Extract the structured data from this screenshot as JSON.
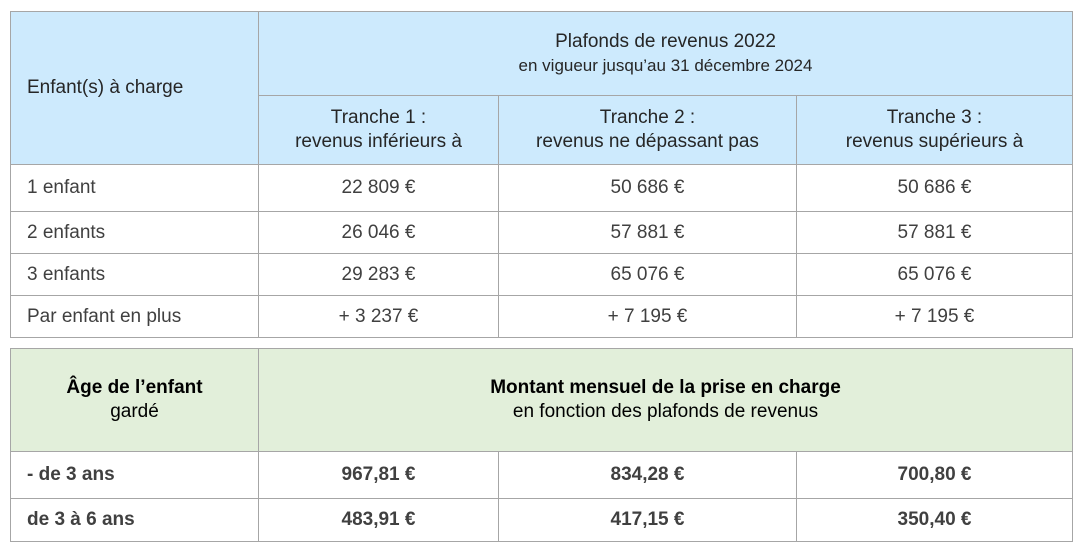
{
  "income_table": {
    "col_header": "Enfant(s) à charge",
    "title": "Plafonds de revenus 2022",
    "subtitle": "en vigueur jusqu’au 31 décembre 2024",
    "tranches": [
      {
        "line1": "Tranche 1 :",
        "line2": "revenus inférieurs à"
      },
      {
        "line1": "Tranche 2 :",
        "line2": "revenus ne dépassant pas"
      },
      {
        "line1": "Tranche 3 :",
        "line2": "revenus supérieurs à"
      }
    ],
    "rows": [
      {
        "label": "1 enfant",
        "values": [
          "22 809 €",
          "50 686 €",
          "50 686 €"
        ]
      },
      {
        "label": "2 enfants",
        "values": [
          "26 046 €",
          "57 881 €",
          "57 881 €"
        ]
      },
      {
        "label": "3 enfants",
        "values": [
          "29 283 €",
          "65 076 €",
          "65 076 €"
        ]
      },
      {
        "label": "Par enfant en plus",
        "values": [
          "+ 3 237 €",
          "+ 7 195 €",
          "+ 7 195 €"
        ]
      }
    ],
    "header_color": "#cdeafd"
  },
  "amount_table": {
    "col_header_line1": "Âge de l’enfant",
    "col_header_line2": "gardé",
    "title": "Montant mensuel de la prise en charge",
    "subtitle": "en fonction des plafonds de revenus",
    "rows": [
      {
        "label": "- de 3 ans",
        "values": [
          "967,81 €",
          "834,28 €",
          "700,80 €"
        ]
      },
      {
        "label": "de 3 à 6 ans",
        "values": [
          "483,91 €",
          "417,15 €",
          "350,40 €"
        ]
      }
    ],
    "header_color": "#e2efda"
  }
}
